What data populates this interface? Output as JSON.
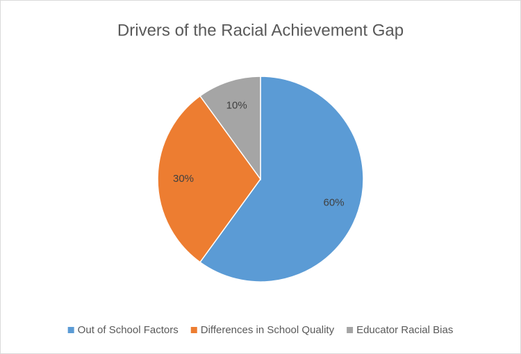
{
  "chart_data": {
    "type": "pie",
    "title": "Drivers of the Racial Achievement Gap",
    "categories": [
      "Out of School Factors",
      "Differences in School Quality",
      "Educator Racial Bias"
    ],
    "values": [
      60,
      30,
      10
    ],
    "value_labels": [
      "60%",
      "30%",
      "10%"
    ],
    "colors": [
      "#5b9bd5",
      "#ed7d31",
      "#a5a5a5"
    ],
    "legend": "bottom"
  }
}
